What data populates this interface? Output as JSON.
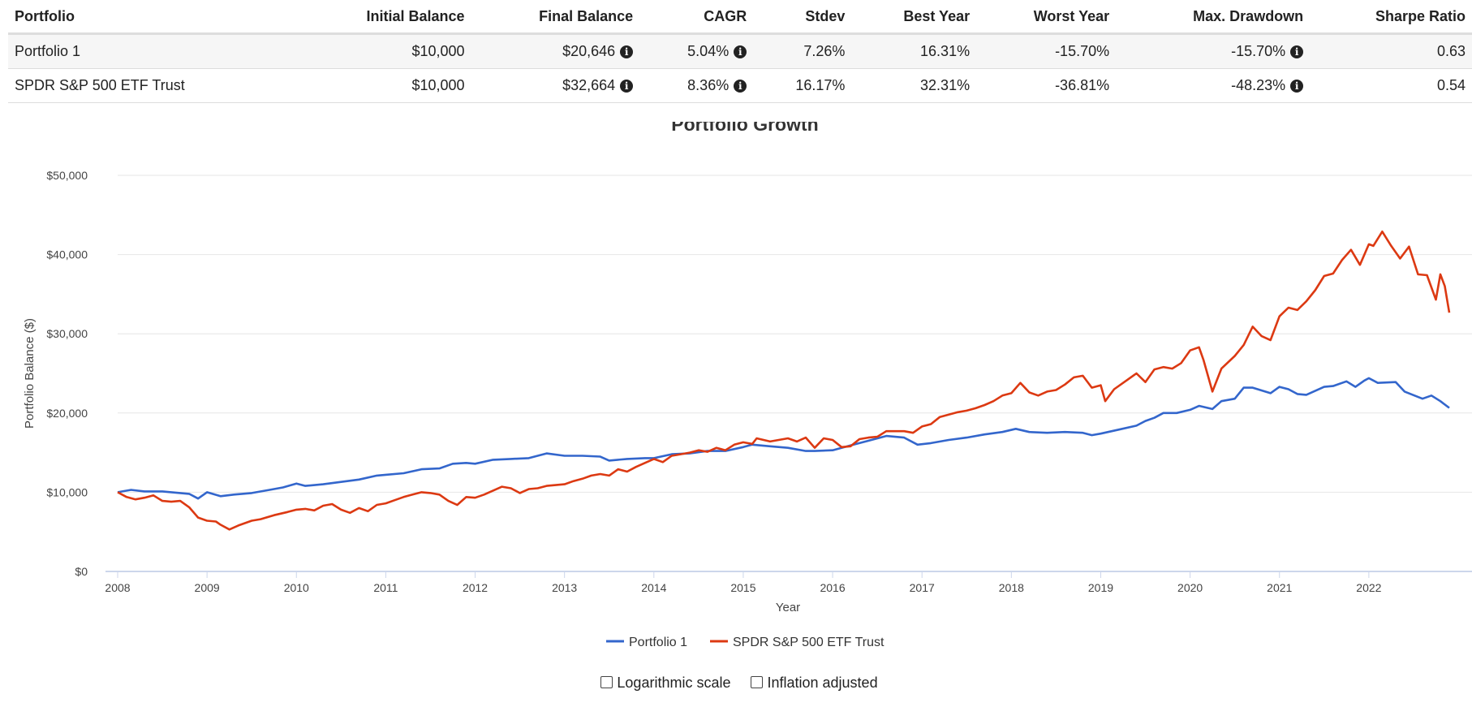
{
  "table": {
    "headers": [
      "Portfolio",
      "Initial Balance",
      "Final Balance",
      "CAGR",
      "Stdev",
      "Best Year",
      "Worst Year",
      "Max. Drawdown",
      "Sharpe Ratio"
    ],
    "rows": [
      {
        "portfolio": "Portfolio 1",
        "initial": "$10,000",
        "final": "$20,646",
        "cagr": "5.04%",
        "stdev": "7.26%",
        "best": "16.31%",
        "worst": "-15.70%",
        "drawdown": "-15.70%",
        "sharpe": "0.63"
      },
      {
        "portfolio": "SPDR S&P 500 ETF Trust",
        "initial": "$10,000",
        "final": "$32,664",
        "cagr": "8.36%",
        "stdev": "16.17%",
        "best": "32.31%",
        "worst": "-36.81%",
        "drawdown": "-48.23%",
        "sharpe": "0.54"
      }
    ],
    "info_glyph": "i"
  },
  "controls": {
    "log_label": "Logarithmic scale",
    "inflation_label": "Inflation adjusted"
  },
  "colors": {
    "series1": "#3366cc",
    "series2": "#dc3912",
    "grid": "#e6e6e6",
    "axis": "#ccd6eb"
  },
  "chart_data": {
    "type": "line",
    "title": "Portfolio Growth",
    "xlabel": "Year",
    "ylabel": "Portfolio Balance ($)",
    "xlim": [
      2008,
      2022.9
    ],
    "ylim": [
      0,
      50000
    ],
    "y_ticks": [
      0,
      10000,
      20000,
      30000,
      40000,
      50000
    ],
    "y_tick_labels": [
      "$0",
      "$10,000",
      "$20,000",
      "$30,000",
      "$40,000",
      "$50,000"
    ],
    "x_ticks": [
      2008,
      2009,
      2010,
      2011,
      2012,
      2013,
      2014,
      2015,
      2016,
      2017,
      2018,
      2019,
      2020,
      2021,
      2022
    ],
    "x_tick_labels": [
      "2008",
      "2009",
      "2010",
      "2011",
      "2012",
      "2013",
      "2014",
      "2015",
      "2016",
      "2017",
      "2018",
      "2019",
      "2020",
      "2021",
      "2022"
    ],
    "legend_position": "bottom-center",
    "series": [
      {
        "name": "Portfolio 1",
        "points": [
          [
            2008,
            10000
          ],
          [
            2008.15,
            10300
          ],
          [
            2008.3,
            10100
          ],
          [
            2008.5,
            10100
          ],
          [
            2008.7,
            9900
          ],
          [
            2008.8,
            9800
          ],
          [
            2008.9,
            9200
          ],
          [
            2009,
            10000
          ],
          [
            2009.15,
            9500
          ],
          [
            2009.3,
            9700
          ],
          [
            2009.5,
            9900
          ],
          [
            2009.7,
            10300
          ],
          [
            2009.85,
            10600
          ],
          [
            2010,
            11100
          ],
          [
            2010.1,
            10800
          ],
          [
            2010.3,
            11000
          ],
          [
            2010.5,
            11300
          ],
          [
            2010.7,
            11600
          ],
          [
            2010.9,
            12100
          ],
          [
            2011,
            12200
          ],
          [
            2011.2,
            12400
          ],
          [
            2011.4,
            12900
          ],
          [
            2011.6,
            13000
          ],
          [
            2011.75,
            13600
          ],
          [
            2011.9,
            13700
          ],
          [
            2012,
            13600
          ],
          [
            2012.2,
            14100
          ],
          [
            2012.4,
            14200
          ],
          [
            2012.6,
            14300
          ],
          [
            2012.8,
            14900
          ],
          [
            2013,
            14600
          ],
          [
            2013.2,
            14600
          ],
          [
            2013.4,
            14500
          ],
          [
            2013.5,
            14000
          ],
          [
            2013.7,
            14200
          ],
          [
            2013.9,
            14300
          ],
          [
            2014,
            14300
          ],
          [
            2014.2,
            14800
          ],
          [
            2014.4,
            14900
          ],
          [
            2014.6,
            15200
          ],
          [
            2014.8,
            15200
          ],
          [
            2015,
            15700
          ],
          [
            2015.1,
            16000
          ],
          [
            2015.3,
            15800
          ],
          [
            2015.5,
            15600
          ],
          [
            2015.7,
            15200
          ],
          [
            2015.8,
            15200
          ],
          [
            2016,
            15300
          ],
          [
            2016.2,
            15900
          ],
          [
            2016.4,
            16500
          ],
          [
            2016.6,
            17100
          ],
          [
            2016.8,
            16900
          ],
          [
            2016.95,
            16000
          ],
          [
            2017.1,
            16200
          ],
          [
            2017.3,
            16600
          ],
          [
            2017.5,
            16900
          ],
          [
            2017.7,
            17300
          ],
          [
            2017.9,
            17600
          ],
          [
            2018.05,
            18000
          ],
          [
            2018.2,
            17600
          ],
          [
            2018.4,
            17500
          ],
          [
            2018.6,
            17600
          ],
          [
            2018.8,
            17500
          ],
          [
            2018.9,
            17200
          ],
          [
            2019,
            17400
          ],
          [
            2019.2,
            17900
          ],
          [
            2019.4,
            18400
          ],
          [
            2019.5,
            19000
          ],
          [
            2019.6,
            19400
          ],
          [
            2019.7,
            20000
          ],
          [
            2019.85,
            20000
          ],
          [
            2020,
            20400
          ],
          [
            2020.1,
            20900
          ],
          [
            2020.25,
            20500
          ],
          [
            2020.35,
            21500
          ],
          [
            2020.5,
            21800
          ],
          [
            2020.6,
            23200
          ],
          [
            2020.7,
            23200
          ],
          [
            2020.9,
            22500
          ],
          [
            2021,
            23300
          ],
          [
            2021.1,
            23000
          ],
          [
            2021.2,
            22400
          ],
          [
            2021.3,
            22300
          ],
          [
            2021.5,
            23300
          ],
          [
            2021.6,
            23400
          ],
          [
            2021.75,
            24000
          ],
          [
            2021.85,
            23300
          ],
          [
            2021.95,
            24100
          ],
          [
            2022,
            24400
          ],
          [
            2022.1,
            23800
          ],
          [
            2022.3,
            23900
          ],
          [
            2022.4,
            22700
          ],
          [
            2022.6,
            21800
          ],
          [
            2022.7,
            22200
          ],
          [
            2022.8,
            21500
          ],
          [
            2022.9,
            20646
          ]
        ]
      },
      {
        "name": "SPDR S&P 500 ETF Trust",
        "points": [
          [
            2008,
            10000
          ],
          [
            2008.1,
            9400
          ],
          [
            2008.2,
            9100
          ],
          [
            2008.3,
            9300
          ],
          [
            2008.4,
            9600
          ],
          [
            2008.5,
            8900
          ],
          [
            2008.6,
            8800
          ],
          [
            2008.7,
            8900
          ],
          [
            2008.8,
            8100
          ],
          [
            2008.9,
            6800
          ],
          [
            2009,
            6400
          ],
          [
            2009.1,
            6300
          ],
          [
            2009.15,
            5900
          ],
          [
            2009.25,
            5300
          ],
          [
            2009.35,
            5800
          ],
          [
            2009.5,
            6400
          ],
          [
            2009.6,
            6600
          ],
          [
            2009.75,
            7100
          ],
          [
            2009.9,
            7500
          ],
          [
            2010,
            7800
          ],
          [
            2010.1,
            7900
          ],
          [
            2010.2,
            7700
          ],
          [
            2010.3,
            8300
          ],
          [
            2010.4,
            8500
          ],
          [
            2010.5,
            7800
          ],
          [
            2010.6,
            7400
          ],
          [
            2010.7,
            8000
          ],
          [
            2010.8,
            7600
          ],
          [
            2010.9,
            8400
          ],
          [
            2011,
            8600
          ],
          [
            2011.1,
            9000
          ],
          [
            2011.2,
            9400
          ],
          [
            2011.3,
            9700
          ],
          [
            2011.4,
            10000
          ],
          [
            2011.5,
            9900
          ],
          [
            2011.6,
            9700
          ],
          [
            2011.7,
            8900
          ],
          [
            2011.8,
            8400
          ],
          [
            2011.9,
            9400
          ],
          [
            2012,
            9300
          ],
          [
            2012.1,
            9700
          ],
          [
            2012.2,
            10200
          ],
          [
            2012.3,
            10700
          ],
          [
            2012.4,
            10500
          ],
          [
            2012.5,
            9900
          ],
          [
            2012.6,
            10400
          ],
          [
            2012.7,
            10500
          ],
          [
            2012.8,
            10800
          ],
          [
            2012.9,
            10900
          ],
          [
            2013,
            11000
          ],
          [
            2013.1,
            11400
          ],
          [
            2013.2,
            11700
          ],
          [
            2013.3,
            12100
          ],
          [
            2013.4,
            12300
          ],
          [
            2013.5,
            12100
          ],
          [
            2013.6,
            12900
          ],
          [
            2013.7,
            12600
          ],
          [
            2013.8,
            13200
          ],
          [
            2013.9,
            13700
          ],
          [
            2014,
            14200
          ],
          [
            2014.1,
            13800
          ],
          [
            2014.2,
            14600
          ],
          [
            2014.3,
            14800
          ],
          [
            2014.4,
            15000
          ],
          [
            2014.5,
            15300
          ],
          [
            2014.6,
            15100
          ],
          [
            2014.7,
            15600
          ],
          [
            2014.8,
            15300
          ],
          [
            2014.9,
            16000
          ],
          [
            2015,
            16300
          ],
          [
            2015.1,
            16100
          ],
          [
            2015.15,
            16800
          ],
          [
            2015.3,
            16400
          ],
          [
            2015.5,
            16800
          ],
          [
            2015.6,
            16400
          ],
          [
            2015.7,
            16900
          ],
          [
            2015.8,
            15600
          ],
          [
            2015.9,
            16800
          ],
          [
            2016,
            16600
          ],
          [
            2016.1,
            15700
          ],
          [
            2016.2,
            15800
          ],
          [
            2016.3,
            16700
          ],
          [
            2016.4,
            16900
          ],
          [
            2016.5,
            17000
          ],
          [
            2016.6,
            17700
          ],
          [
            2016.8,
            17700
          ],
          [
            2016.9,
            17500
          ],
          [
            2017,
            18300
          ],
          [
            2017.1,
            18600
          ],
          [
            2017.2,
            19500
          ],
          [
            2017.3,
            19800
          ],
          [
            2017.4,
            20100
          ],
          [
            2017.5,
            20300
          ],
          [
            2017.6,
            20600
          ],
          [
            2017.7,
            21000
          ],
          [
            2017.8,
            21500
          ],
          [
            2017.9,
            22200
          ],
          [
            2018,
            22500
          ],
          [
            2018.1,
            23800
          ],
          [
            2018.2,
            22600
          ],
          [
            2018.3,
            22200
          ],
          [
            2018.4,
            22700
          ],
          [
            2018.5,
            22900
          ],
          [
            2018.6,
            23600
          ],
          [
            2018.7,
            24500
          ],
          [
            2018.8,
            24700
          ],
          [
            2018.9,
            23200
          ],
          [
            2019,
            23500
          ],
          [
            2019.05,
            21500
          ],
          [
            2019.15,
            23000
          ],
          [
            2019.3,
            24200
          ],
          [
            2019.4,
            25000
          ],
          [
            2019.5,
            23900
          ],
          [
            2019.6,
            25500
          ],
          [
            2019.7,
            25800
          ],
          [
            2019.8,
            25600
          ],
          [
            2019.9,
            26300
          ],
          [
            2020,
            27900
          ],
          [
            2020.1,
            28300
          ],
          [
            2020.15,
            26700
          ],
          [
            2020.25,
            22700
          ],
          [
            2020.35,
            25600
          ],
          [
            2020.5,
            27200
          ],
          [
            2020.6,
            28600
          ],
          [
            2020.7,
            30900
          ],
          [
            2020.8,
            29700
          ],
          [
            2020.9,
            29200
          ],
          [
            2021,
            32200
          ],
          [
            2021.1,
            33300
          ],
          [
            2021.2,
            33000
          ],
          [
            2021.3,
            34100
          ],
          [
            2021.4,
            35500
          ],
          [
            2021.5,
            37300
          ],
          [
            2021.6,
            37600
          ],
          [
            2021.7,
            39300
          ],
          [
            2021.8,
            40600
          ],
          [
            2021.9,
            38700
          ],
          [
            2022,
            41300
          ],
          [
            2022.05,
            41100
          ],
          [
            2022.15,
            42900
          ],
          [
            2022.25,
            41100
          ],
          [
            2022.35,
            39500
          ],
          [
            2022.45,
            41000
          ],
          [
            2022.55,
            37500
          ],
          [
            2022.65,
            37400
          ],
          [
            2022.75,
            34300
          ],
          [
            2022.8,
            37500
          ],
          [
            2022.85,
            36000
          ],
          [
            2022.9,
            32664
          ]
        ]
      }
    ]
  }
}
